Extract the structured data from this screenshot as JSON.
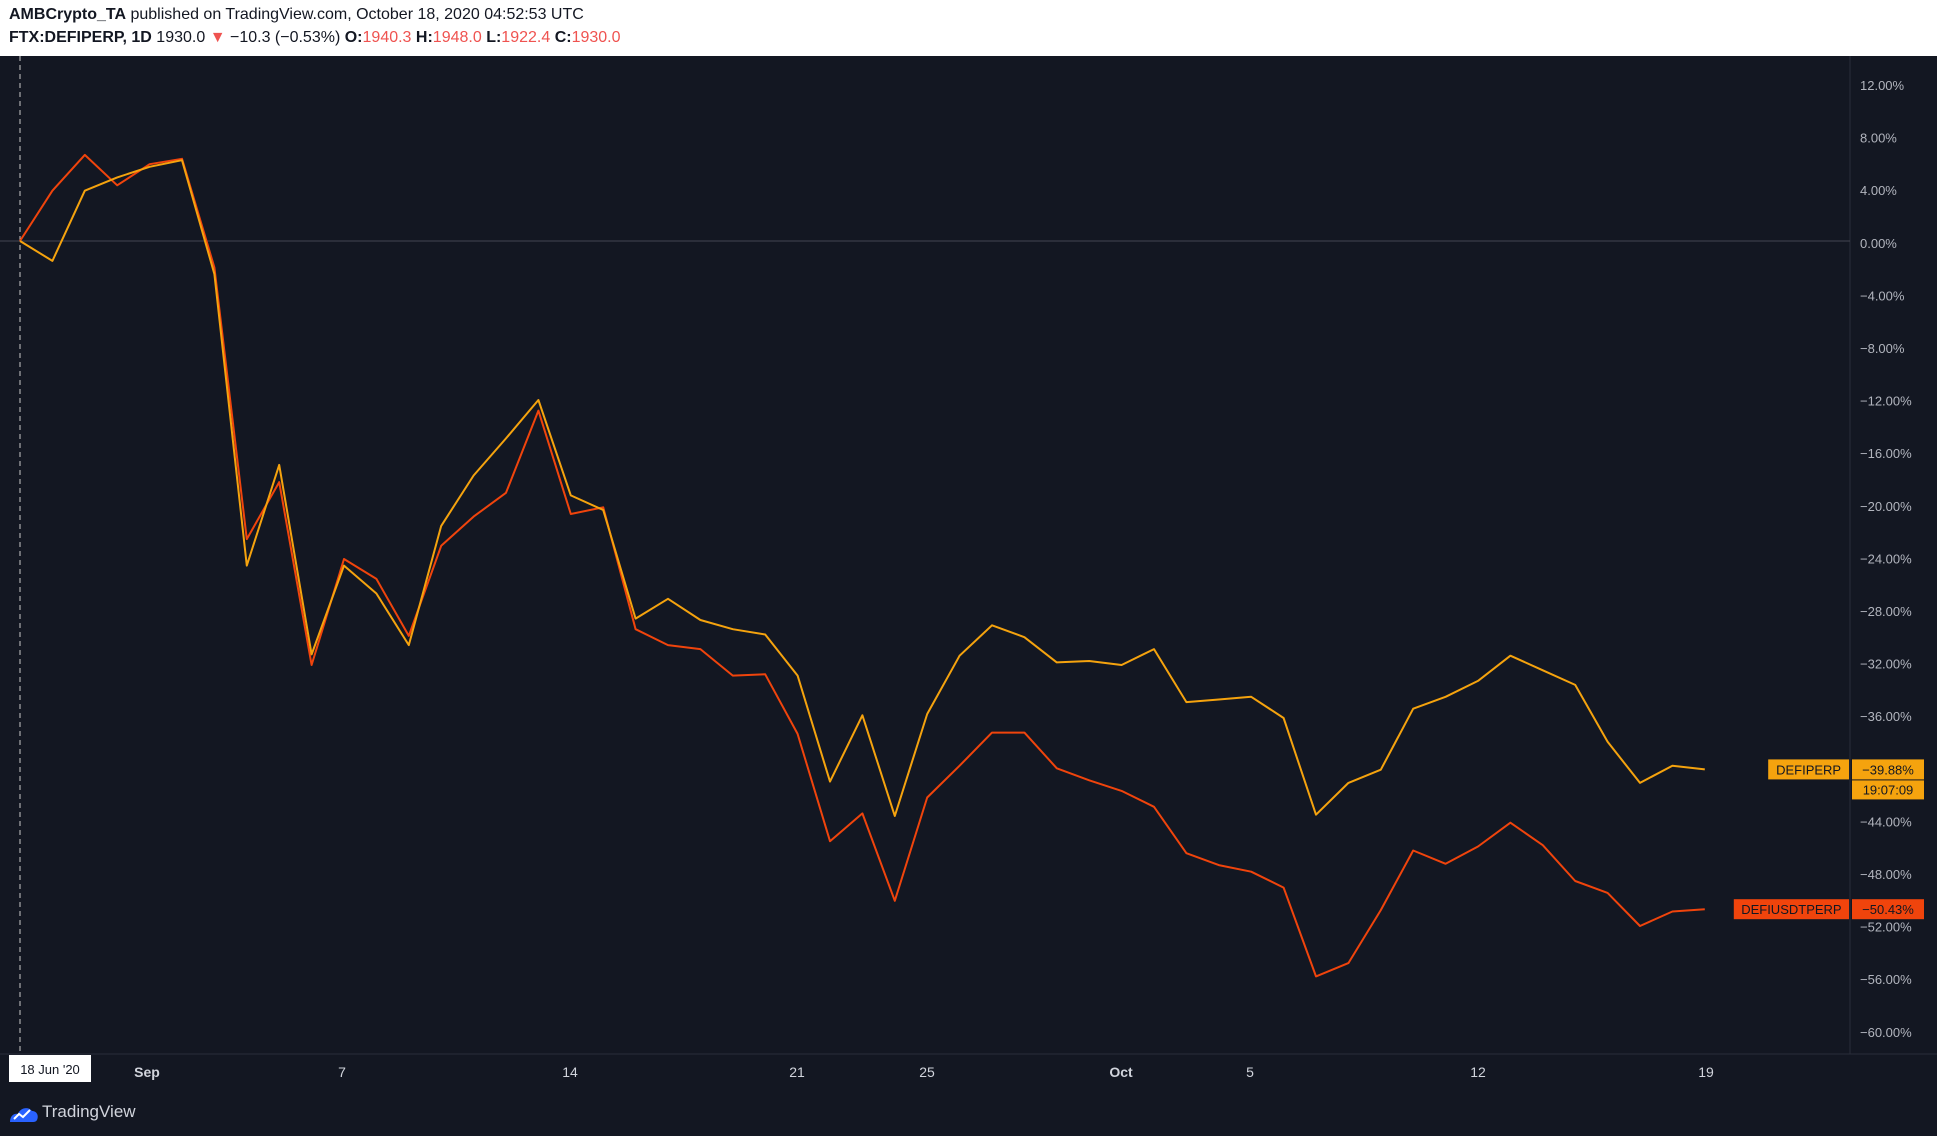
{
  "header": {
    "author": "AMBCrypto_TA",
    "published_text": "published on TradingView.com, October 18, 2020 04:52:53 UTC",
    "symbol": "FTX:DEFIPERP, 1D",
    "last": "1930.0",
    "change": "−10.3 (−0.53%)",
    "o_label": "O:",
    "o_value": "1940.3",
    "h_label": "H:",
    "h_value": "1948.0",
    "l_label": "L:",
    "l_value": "1922.4",
    "c_label": "C:",
    "c_value": "1930.0"
  },
  "footer": {
    "brand": "TradingView"
  },
  "chart_data": {
    "type": "line",
    "y_unit": "%",
    "ylim": [
      -62,
      14
    ],
    "y_ticks": [
      "12.00%",
      "8.00%",
      "4.00%",
      "0.00%",
      "−4.00%",
      "−8.00%",
      "−12.00%",
      "−16.00%",
      "−20.00%",
      "−24.00%",
      "−28.00%",
      "−32.00%",
      "−36.00%",
      "−40.00%",
      "−44.00%",
      "−48.00%",
      "−52.00%",
      "−56.00%",
      "−60.00%"
    ],
    "x_ticks": [
      {
        "label": "Sep",
        "bold": true
      },
      {
        "label": "7",
        "bold": false
      },
      {
        "label": "14",
        "bold": false
      },
      {
        "label": "21",
        "bold": false
      },
      {
        "label": "25",
        "bold": false
      },
      {
        "label": "Oct",
        "bold": true
      },
      {
        "label": "5",
        "bold": false
      },
      {
        "label": "12",
        "bold": false
      },
      {
        "label": "19",
        "bold": false
      }
    ],
    "crosshair_date": "18 Jun '20",
    "series": [
      {
        "name": "DEFIUSDTPERP",
        "color": "#f0440c",
        "last_label": "−50.43%",
        "values": [
          0,
          3.8,
          6.5,
          4.2,
          5.8,
          6.2,
          -2,
          -22.5,
          -18.2,
          -32,
          -24,
          -25.5,
          -29.8,
          -23,
          -20.8,
          -19,
          -12.8,
          -20.6,
          -20.1,
          -29.3,
          -30.5,
          -30.8,
          -32.8,
          -32.7,
          -37.2,
          -45.3,
          -43.2,
          -49.8,
          -42,
          -39.6,
          -37.1,
          -37.1,
          -39.8,
          -40.7,
          -41.5,
          -42.7,
          -46.2,
          -47.1,
          -47.6,
          -48.8,
          -55.5,
          -54.5,
          -50.5,
          -46,
          -47,
          -45.7,
          -43.9,
          -45.6,
          -48.3,
          -49.2,
          -51.7,
          -50.6,
          -50.43
        ]
      },
      {
        "name": "DEFIPERP",
        "color": "#f5a30e",
        "last_label": "−39.88%",
        "time_label": "19:07:09",
        "values": [
          0,
          -1.5,
          3.8,
          4.8,
          5.6,
          6.1,
          -2.5,
          -24.5,
          -16.9,
          -31.2,
          -24.5,
          -26.6,
          -30.5,
          -21.5,
          -17.7,
          -14.9,
          -12,
          -19.2,
          -20.3,
          -28.5,
          -27,
          -28.6,
          -29.3,
          -29.7,
          -32.8,
          -40.8,
          -35.8,
          -43.4,
          -35.7,
          -31.3,
          -29,
          -29.9,
          -31.8,
          -31.7,
          -32,
          -30.8,
          -34.8,
          -34.6,
          -34.4,
          -36,
          -43.3,
          -40.9,
          -39.9,
          -35.3,
          -34.4,
          -33.2,
          -31.3,
          -32.4,
          -33.5,
          -37.8,
          -40.9,
          -39.6,
          -39.88
        ]
      }
    ]
  }
}
